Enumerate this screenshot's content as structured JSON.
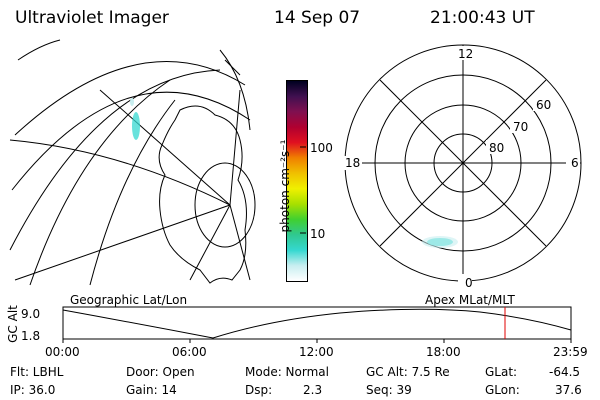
{
  "header": {
    "title": "Ultraviolet Imager",
    "date": "14 Sep 07",
    "time": "21:00:43 UT"
  },
  "panels": {
    "left_label": "Geographic Lat/Lon",
    "right_label": "Apex MLat/MLT"
  },
  "colorbar": {
    "unit_label": "photon cm⁻²s⁻¹",
    "ticks": [
      "100",
      "10"
    ],
    "colors": [
      "#ffffff",
      "#c8eef0",
      "#35d8d0",
      "#30c890",
      "#40d030",
      "#a8e000",
      "#f0f000",
      "#f0c000",
      "#f08000",
      "#e01020",
      "#b00030",
      "#801050",
      "#401050",
      "#000020"
    ]
  },
  "polar": {
    "mlt_labels": {
      "top": "12",
      "left": "18",
      "right": "6",
      "bottom": "0"
    },
    "lat_labels": [
      "60",
      "70",
      "80"
    ]
  },
  "timeline": {
    "axis_label": "GC Alt",
    "y_top": "9.0",
    "y_bottom": "1.8",
    "ticks": [
      "00:00",
      "06:00",
      "12:00",
      "18:00",
      "23:59"
    ],
    "current_marker_color": "#e00000"
  },
  "info": {
    "filter": "Flt: LBHL",
    "ip": "IP: 36.0",
    "door": "Door: Open",
    "gain": "Gain: 14",
    "mode": "Mode: Normal",
    "dsp_label": "Dsp:",
    "dsp_value": "2.3",
    "gc_alt": "GC Alt: 7.5 Re",
    "seq": "Seq: 39",
    "glat_label": "GLat:",
    "glat_value": "-64.5",
    "glon_label": "GLon:",
    "glon_value": "37.6"
  }
}
